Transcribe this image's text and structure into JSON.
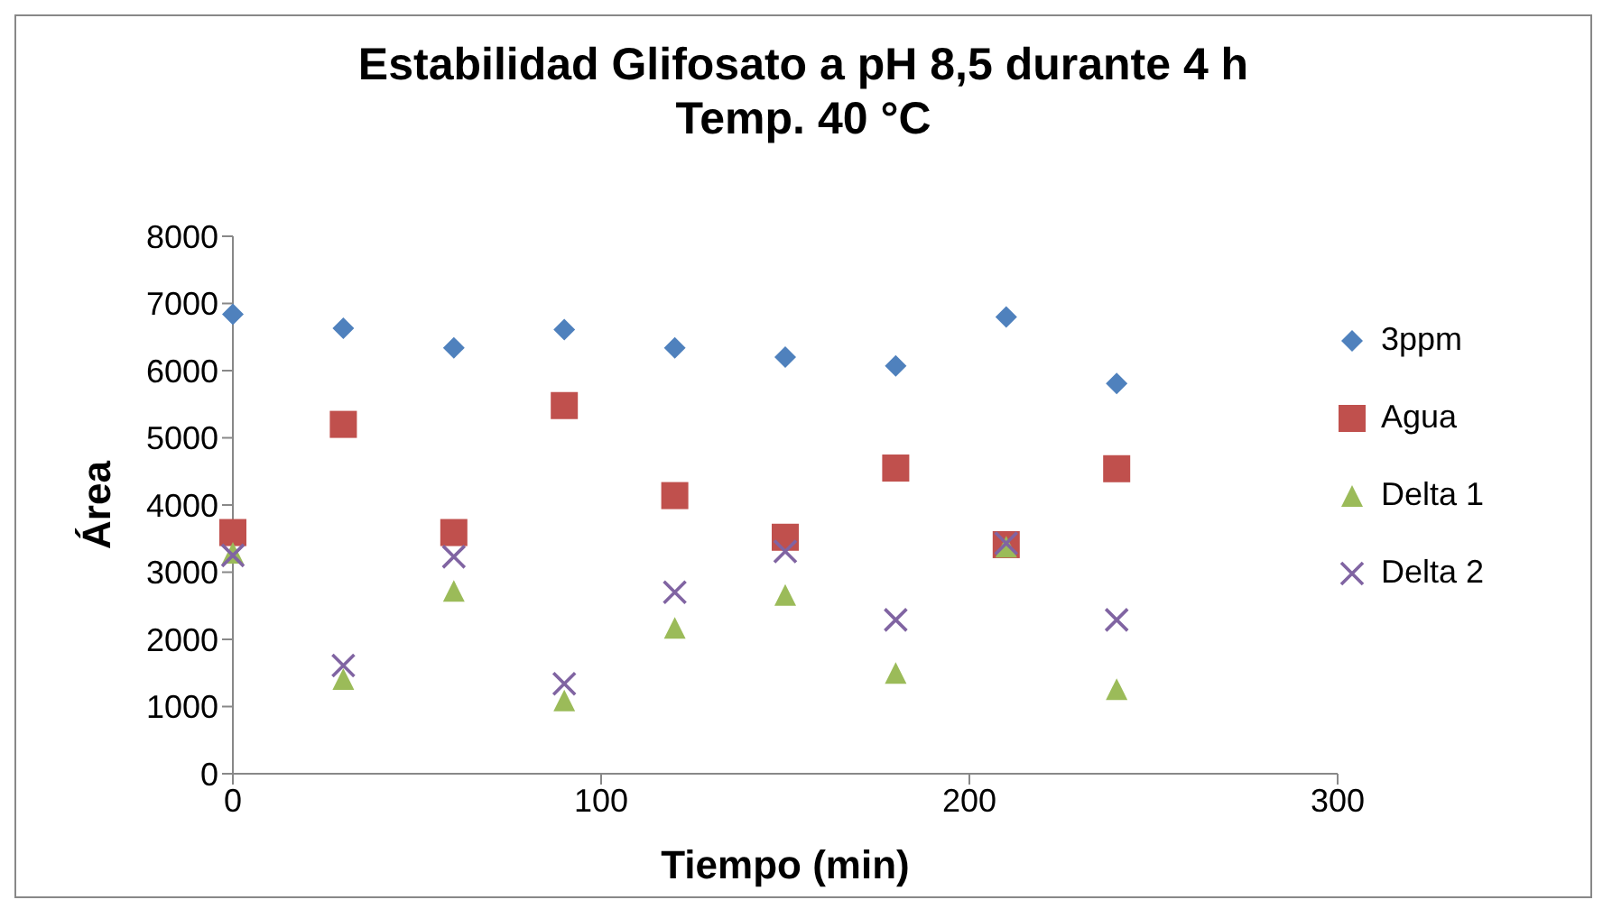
{
  "chart_data": {
    "type": "scatter",
    "title": "Estabilidad Glifosato a pH 8,5 durante 4 h\nTemp. 40 °C",
    "xlabel": "Tiempo (min)",
    "ylabel": "Área",
    "x": [
      0,
      30,
      60,
      90,
      120,
      150,
      180,
      210,
      240
    ],
    "series": [
      {
        "name": "3ppm",
        "color": "#4f81bd",
        "marker": "diamond",
        "values": [
          6840,
          6630,
          6340,
          6610,
          6340,
          6200,
          6070,
          6800,
          5810
        ]
      },
      {
        "name": "Agua",
        "color": "#c0504d",
        "marker": "square",
        "values": [
          3590,
          5200,
          3590,
          5480,
          4140,
          3520,
          4550,
          3410,
          4540
        ]
      },
      {
        "name": "Delta 1",
        "color": "#9bbb59",
        "marker": "triangle",
        "values": [
          3290,
          1410,
          2720,
          1090,
          2170,
          2660,
          1500,
          3380,
          1260
        ]
      },
      {
        "name": "Delta 2",
        "color": "#8064a2",
        "marker": "cross",
        "values": [
          3250,
          1610,
          3230,
          1340,
          2700,
          3310,
          2290,
          3430,
          2290
        ]
      }
    ],
    "xlim": [
      0,
      300
    ],
    "xticks": [
      0,
      100,
      200,
      300
    ],
    "ylim": [
      0,
      8000
    ],
    "yticks": [
      0,
      1000,
      2000,
      3000,
      4000,
      5000,
      6000,
      7000,
      8000
    ],
    "legend": "right"
  }
}
